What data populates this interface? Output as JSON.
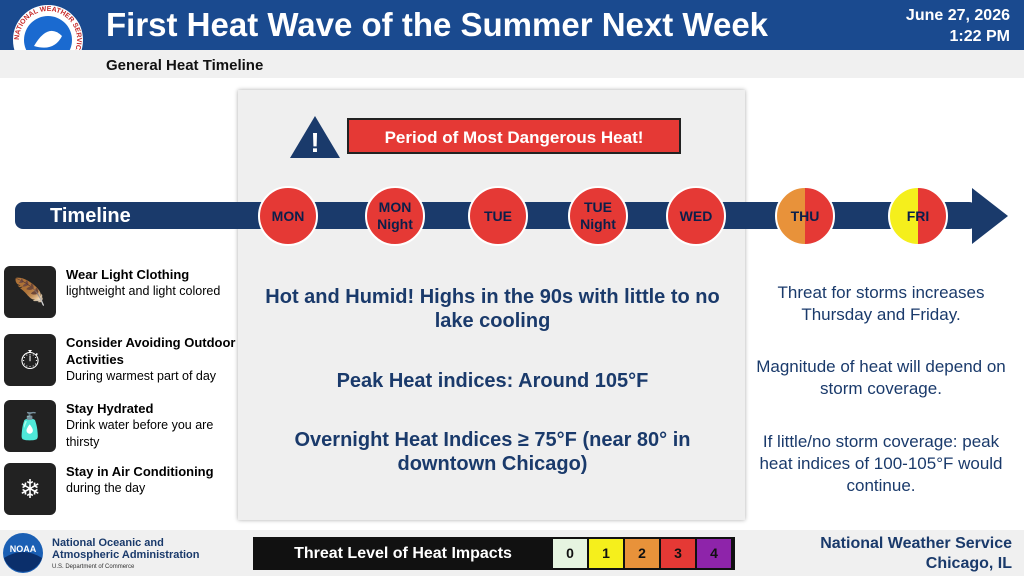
{
  "header": {
    "title": "First Heat Wave of the Summer Next Week",
    "subtitle": "General Heat Timeline",
    "date": "June 27, 2026",
    "time": "1:22 PM",
    "logo_text": "NATIONAL WEATHER SERVICE"
  },
  "banner": "Period of Most Dangerous Heat!",
  "timeline": {
    "label": "Timeline",
    "days": [
      {
        "lines": [
          "MON"
        ],
        "colors": [
          "#e53935",
          "#e53935"
        ]
      },
      {
        "lines": [
          "MON",
          "Night"
        ],
        "colors": [
          "#e53935",
          "#e53935"
        ]
      },
      {
        "lines": [
          "TUE"
        ],
        "colors": [
          "#e53935",
          "#e53935"
        ]
      },
      {
        "lines": [
          "TUE",
          "Night"
        ],
        "colors": [
          "#e53935",
          "#e53935"
        ]
      },
      {
        "lines": [
          "WED"
        ],
        "colors": [
          "#e53935",
          "#e53935"
        ]
      },
      {
        "lines": [
          "THU"
        ],
        "colors": [
          "#e8923a",
          "#e53935"
        ]
      },
      {
        "lines": [
          "FRI"
        ],
        "colors": [
          "#f5ef1c",
          "#e53935"
        ]
      }
    ]
  },
  "tips": [
    {
      "title": "Wear Light Clothing",
      "text": "lightweight and light colored"
    },
    {
      "title": "Consider Avoiding Outdoor Activities",
      "text": "During warmest part of day"
    },
    {
      "title": "Stay Hydrated",
      "text": "Drink water before you are thirsty"
    },
    {
      "title": "Stay in Air Conditioning",
      "text": "during the day"
    }
  ],
  "center_notes": [
    "Hot and Humid! Highs in the 90s with little to no lake cooling",
    "Peak Heat indices: Around 105°F",
    "Overnight Heat Indices ≥ 75°F (near 80° in downtown Chicago)"
  ],
  "right_notes": [
    "Threat for storms increases Thursday and Friday.",
    "Magnitude of heat will depend on storm coverage.",
    "If little/no storm coverage: peak heat indices of 100-105°F would continue."
  ],
  "footer": {
    "noaa_logo": "NOAA",
    "noaa_name": [
      "National Oceanic and",
      "Atmospheric Administration"
    ],
    "noaa_dept": "U.S. Department of Commerce",
    "legend_title": "Threat Level of Heat Impacts",
    "levels": [
      {
        "label": "0",
        "color": "#e6f4e0"
      },
      {
        "label": "1",
        "color": "#f5ef1c"
      },
      {
        "label": "2",
        "color": "#e8923a"
      },
      {
        "label": "3",
        "color": "#e53935"
      },
      {
        "label": "4",
        "color": "#8e24aa"
      }
    ],
    "office": [
      "National Weather Service",
      "Chicago, IL"
    ]
  }
}
